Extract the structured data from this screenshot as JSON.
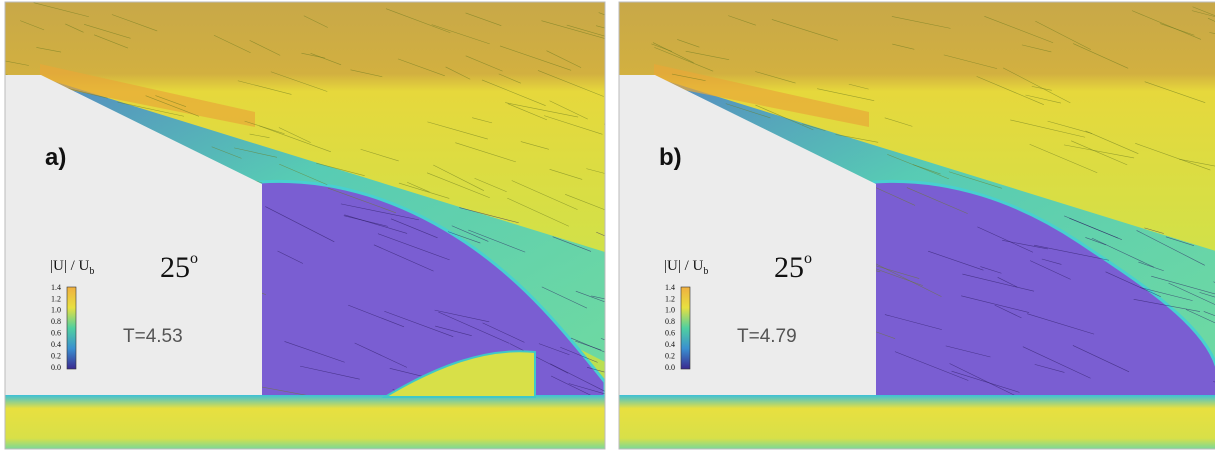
{
  "panels": [
    {
      "label": "a)",
      "quantity": "|U| / U",
      "quantity_subscript": "b",
      "angle": "25",
      "angle_superscript": "o",
      "time": "T=4.53",
      "colorbar_ticks": [
        "1.4",
        "1.2",
        "1.0",
        "0.8",
        "0.6",
        "0.4",
        "0.2",
        "0.0"
      ]
    },
    {
      "label": "b)",
      "quantity": "|U| / U",
      "quantity_subscript": "b",
      "angle": "25",
      "angle_superscript": "o",
      "time": "T=4.79",
      "colorbar_ticks": [
        "1.4",
        "1.2",
        "1.0",
        "0.8",
        "0.6",
        "0.4",
        "0.2",
        "0.0"
      ]
    }
  ]
}
